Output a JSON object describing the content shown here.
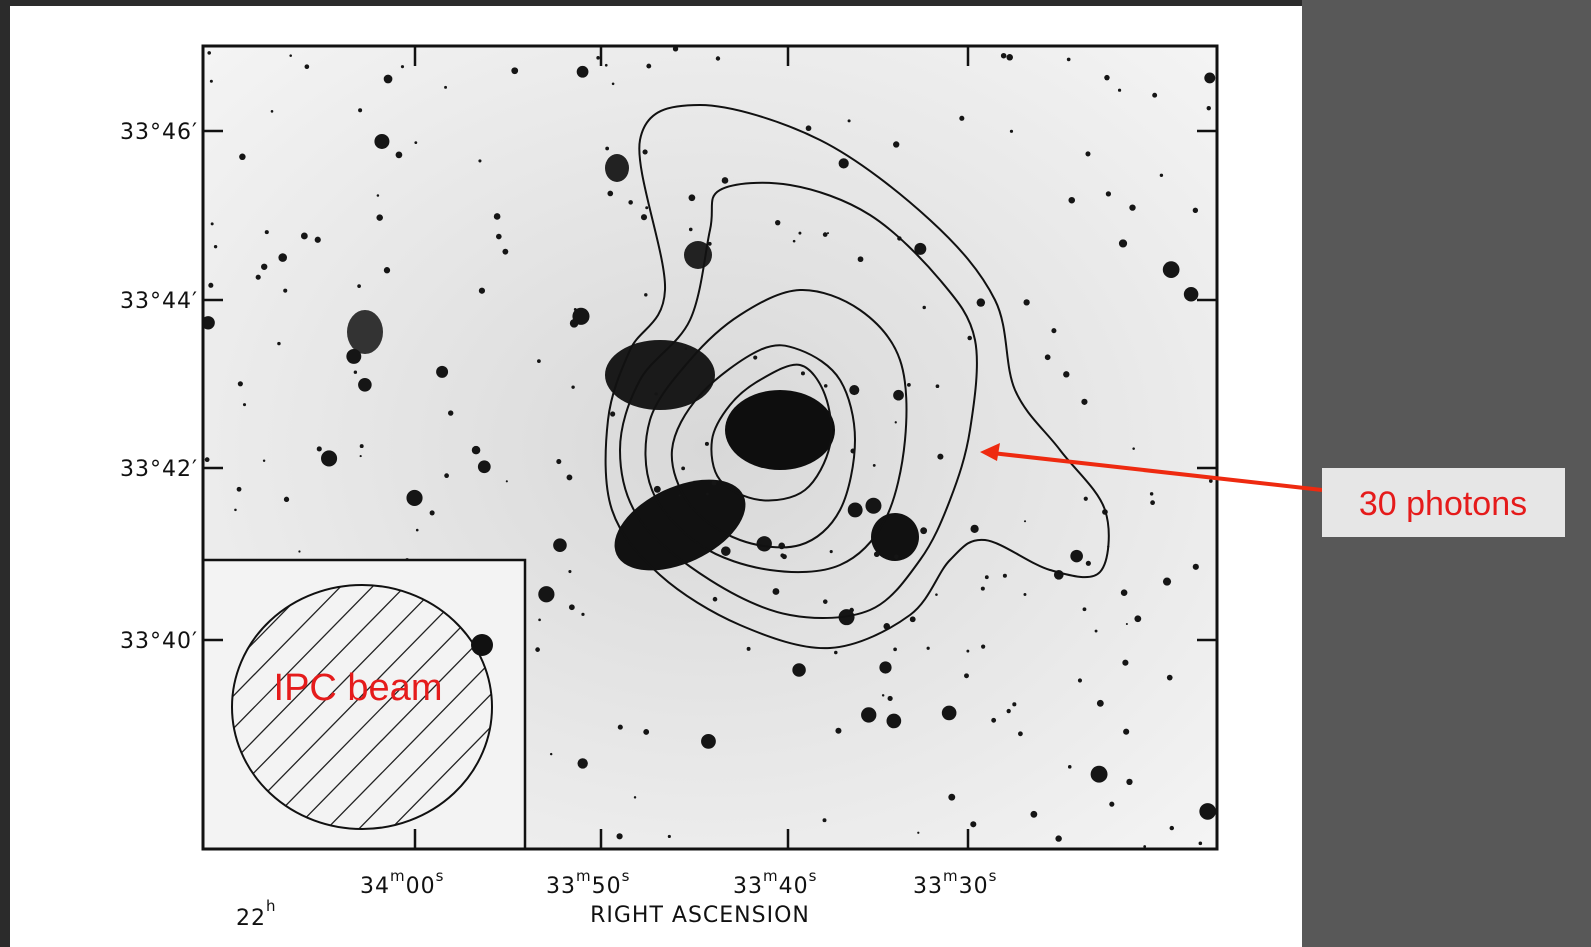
{
  "slide": {
    "figure": {
      "y_labels": [
        "33°46′",
        "33°44′",
        "33°42′",
        "33°40′"
      ],
      "x_labels": [
        {
          "main": "34",
          "sup1": "m",
          "sec": "00",
          "sup2": "s"
        },
        {
          "main": "33",
          "sup1": "m",
          "sec": "50",
          "sup2": "s"
        },
        {
          "main": "33",
          "sup1": "m",
          "sec": "40",
          "sup2": "s"
        },
        {
          "main": "33",
          "sup1": "m",
          "sec": "30",
          "sup2": "s"
        }
      ],
      "hours": {
        "main": "22",
        "sup": "h"
      },
      "x_axis_title": "RIGHT ASCENSION",
      "inset_label": "IPC beam"
    },
    "callout": "30 photons"
  }
}
